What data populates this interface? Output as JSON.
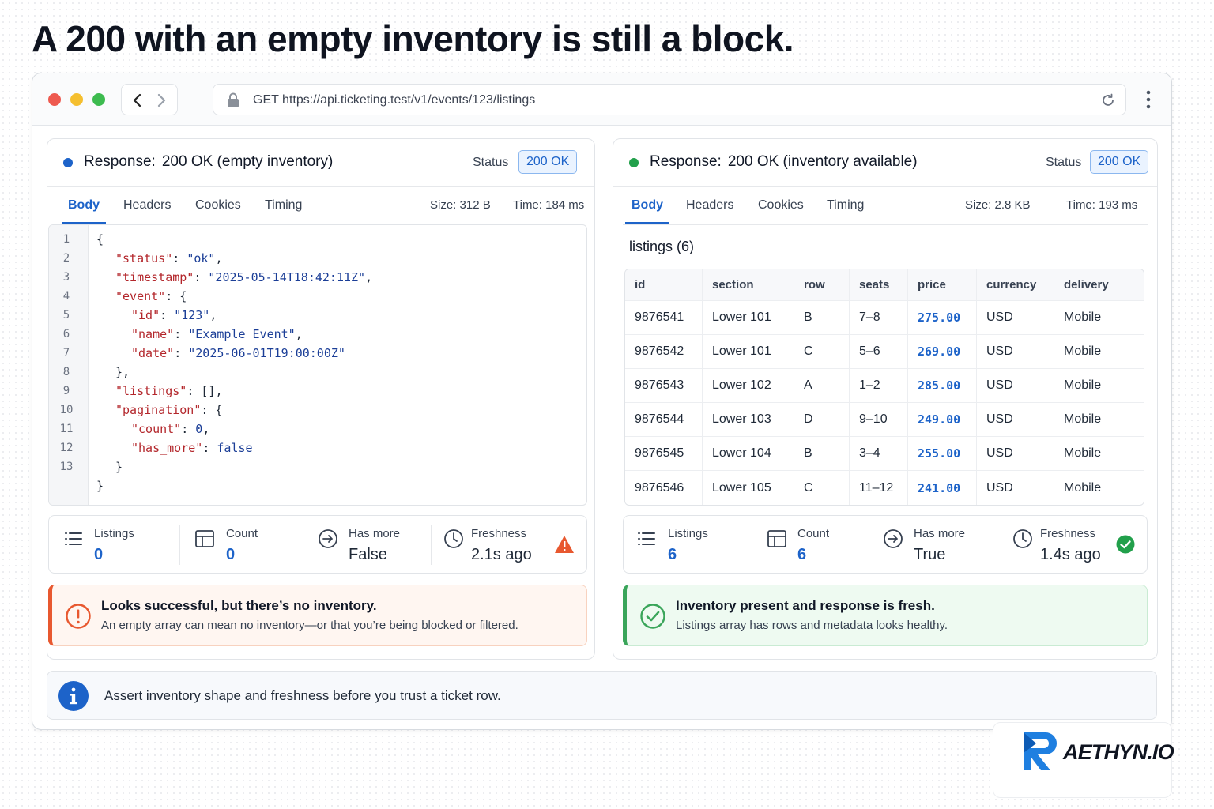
{
  "headline": "A 200 with an empty inventory is still a block.",
  "browser": {
    "url": "GET https://api.ticketing.test/v1/events/123/listings"
  },
  "left": {
    "title_label": "Response:",
    "title_value": "200 OK (empty inventory)",
    "status_label": "Status",
    "status_badge": "200 OK",
    "tabs": [
      "Body",
      "Headers",
      "Cookies",
      "Timing"
    ],
    "size": "Size: 312 B",
    "time": "Time: 184 ms",
    "line_numbers": [
      "1",
      "2",
      "3",
      "4",
      "5",
      "6",
      "7",
      "8",
      "9",
      "10",
      "11",
      "12",
      "13"
    ],
    "code": {
      "l1": "{",
      "status_key": "\"status\"",
      "status_val": "\"ok\"",
      "timestamp_key": "\"timestamp\"",
      "timestamp_val": "\"2025-05-14T18:42:11Z\"",
      "event_key": "\"event\"",
      "id_key": "\"id\"",
      "id_val": "\"123\"",
      "name_key": "\"name\"",
      "name_val": "\"Example Event\"",
      "date_key": "\"date\"",
      "date_val": "\"2025-06-01T19:00:00Z\"",
      "listings_key": "\"listings\"",
      "listings_val": "[]",
      "pagination_key": "\"pagination\"",
      "count_key": "\"count\"",
      "count_val": "0",
      "has_more_key": "\"has_more\"",
      "has_more_val": "false"
    },
    "stats": {
      "listings_label": "Listings",
      "listings_value": "0",
      "count_label": "Count",
      "count_value": "0",
      "has_more_label": "Has more",
      "has_more_value": "False",
      "freshness_label": "Freshness",
      "freshness_value": "2.1s ago"
    },
    "alert": {
      "title": "Looks successful, but there’s no inventory.",
      "sub": "An empty array can mean no inventory—or that you’re being blocked or filtered."
    }
  },
  "right": {
    "title_label": "Response:",
    "title_value": "200 OK (inventory available)",
    "status_label": "Status",
    "status_badge": "200 OK",
    "tabs": [
      "Body",
      "Headers",
      "Cookies",
      "Timing"
    ],
    "size": "Size: 2.8 KB",
    "time": "Time: 193 ms",
    "listings_title": "listings (6)",
    "table": {
      "columns": [
        "id",
        "section",
        "row",
        "seats",
        "price",
        "currency",
        "delivery"
      ],
      "rows": [
        [
          "9876541",
          "Lower 101",
          "B",
          "7–8",
          "275.00",
          "USD",
          "Mobile"
        ],
        [
          "9876542",
          "Lower 101",
          "C",
          "5–6",
          "269.00",
          "USD",
          "Mobile"
        ],
        [
          "9876543",
          "Lower 102",
          "A",
          "1–2",
          "285.00",
          "USD",
          "Mobile"
        ],
        [
          "9876544",
          "Lower 103",
          "D",
          "9–10",
          "249.00",
          "USD",
          "Mobile"
        ],
        [
          "9876545",
          "Lower 104",
          "B",
          "3–4",
          "255.00",
          "USD",
          "Mobile"
        ],
        [
          "9876546",
          "Lower 105",
          "C",
          "11–12",
          "241.00",
          "USD",
          "Mobile"
        ]
      ]
    },
    "stats": {
      "listings_label": "Listings",
      "listings_value": "6",
      "count_label": "Count",
      "count_value": "6",
      "has_more_label": "Has more",
      "has_more_value": "True",
      "freshness_label": "Freshness",
      "freshness_value": "1.4s ago"
    },
    "alert": {
      "title": "Inventory present and response is fresh.",
      "sub": "Listings array has rows and metadata looks healthy."
    }
  },
  "info": {
    "text": "Assert inventory shape and freshness before you trust a ticket row."
  },
  "logo": {
    "text": "AETHYN.IO"
  },
  "colors": {
    "accent_blue": "#1d63c9",
    "warn_orange": "#e8582f",
    "ok_green": "#3aa55a",
    "status_dot_left": "#1d63c9",
    "status_dot_right": "#22a04b"
  },
  "icons": {
    "lock": "lock-icon",
    "reload": "reload-icon",
    "kebab": "kebab-menu-icon",
    "listings": "list-icon",
    "count": "grid-icon",
    "has_more": "arrow-circle-icon",
    "freshness": "clock-icon",
    "warn": "warning-triangle-icon",
    "ok": "check-circle-icon",
    "info": "info-icon"
  }
}
